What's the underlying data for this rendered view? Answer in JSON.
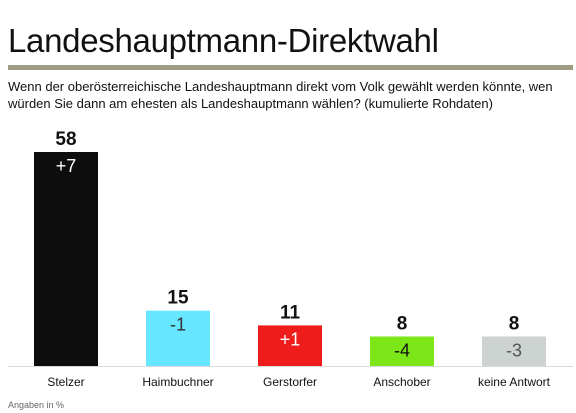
{
  "header": {
    "title": "Landeshauptmann-Direktwahl",
    "subtitle": "Wenn der oberösterreichische Landeshauptmann direkt vom Volk gewählt werden könnte, wen würden Sie dann am ehesten als Landeshauptmann wählen? (kumulierte Rohdaten)",
    "rule_color": "#a09c84"
  },
  "footnote": "Angaben in %",
  "chart_data": {
    "type": "bar",
    "title": "Landeshauptmann-Direktwahl",
    "xlabel": "",
    "ylabel": "",
    "ylim": [
      0,
      58
    ],
    "grid": false,
    "legend": "none",
    "categories": [
      "Stelzer",
      "Haimbuchner",
      "Gerstorfer",
      "Anschober",
      "keine Antwort"
    ],
    "values": [
      58,
      15,
      11,
      8,
      8
    ],
    "changes": [
      "+7",
      "-1",
      "+1",
      "-4",
      "-3"
    ],
    "colors": [
      "#0d0d0d",
      "#66e6ff",
      "#ef1c1c",
      "#7de619",
      "#cdd3d1"
    ],
    "change_text_colors": [
      "#ffffff",
      "#333333",
      "#ffffff",
      "#111111",
      "#555555"
    ],
    "baseline_color": "#d9d9d9"
  }
}
